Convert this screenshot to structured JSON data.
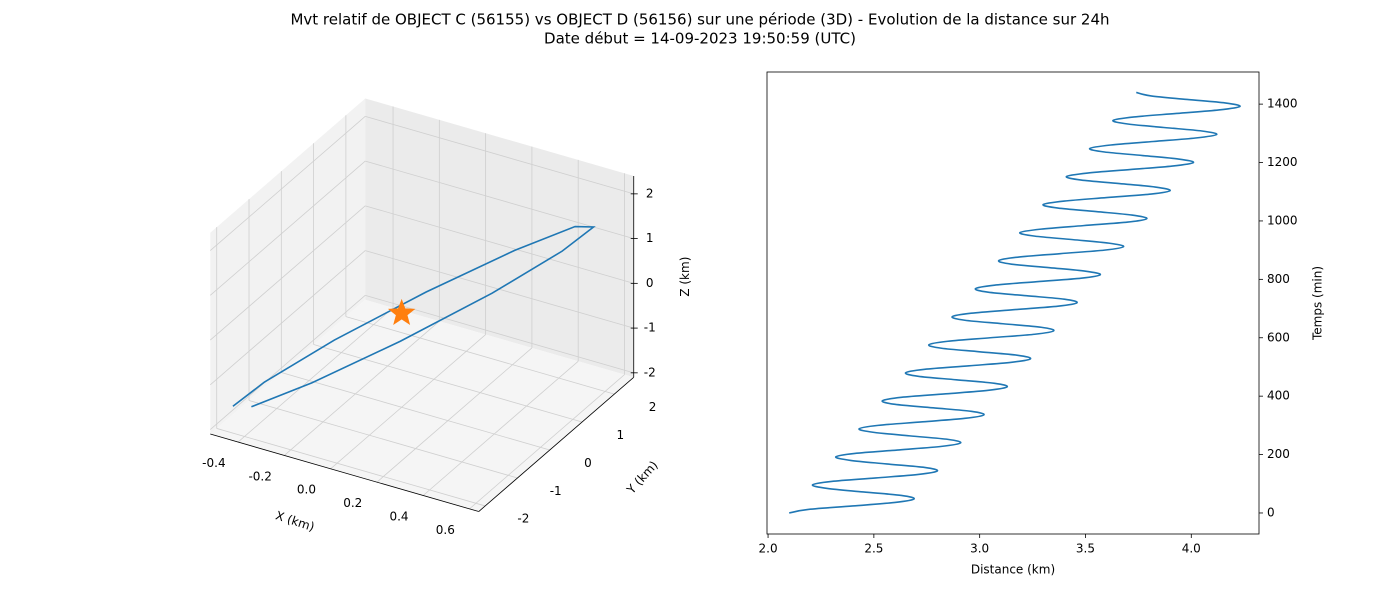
{
  "title": "Mvt relatif de OBJECT C (56155) vs OBJECT D (56156) sur une période (3D) - Evolution de la distance sur 24h",
  "subtitle": "Date début = 14-09-2023 19:50:59 (UTC)",
  "chart_data": [
    {
      "type": "line3d",
      "color": "#1f77b4",
      "x": [
        -0.45,
        -0.38,
        -0.2,
        0.05,
        0.3,
        0.48,
        0.55,
        0.48,
        0.3,
        0.05,
        -0.2,
        -0.38
      ],
      "y": [
        -2,
        -1.53,
        -0.65,
        0.4,
        1.35,
        1.93,
        2,
        1.53,
        0.65,
        -0.4,
        -1.35,
        -1.93
      ],
      "z": [
        -1.5,
        -1.15,
        -0.49,
        0.3,
        1.01,
        1.45,
        1.5,
        1.15,
        0.49,
        -0.3,
        -1.01,
        -1.45
      ],
      "marker": {
        "x": 0,
        "y": 0,
        "z": 0,
        "color": "#ff7f0e"
      },
      "xlabel": "X (km)",
      "ylabel": "Y (km)",
      "zlabel": "Z (km)",
      "xlim": [
        -0.52,
        0.64
      ],
      "ylim": [
        -2.2,
        2.6
      ],
      "zlim": [
        -2.1,
        2.4
      ],
      "xticks": [
        -0.4,
        -0.2,
        {
          "value": 0,
          "label": "0.0"
        },
        0.2,
        0.4,
        0.6
      ],
      "yticks": [
        -2,
        -1,
        0,
        1,
        2
      ],
      "zticks": [
        -2,
        -1,
        0,
        1,
        2
      ],
      "grid": true
    },
    {
      "type": "line",
      "color": "#1f77b4",
      "x": [
        2.1,
        2.19,
        2.4,
        2.6,
        2.69,
        2.63,
        2.45,
        2.28,
        2.21,
        2.3,
        2.51,
        2.71,
        2.8,
        2.74,
        2.56,
        2.39,
        2.32,
        2.41,
        2.62,
        2.82,
        2.91,
        2.85,
        2.67,
        2.5,
        2.43,
        2.52,
        2.73,
        2.93,
        3.02,
        2.96,
        2.78,
        2.6,
        2.54,
        2.63,
        2.84,
        3.04,
        3.13,
        3.07,
        2.89,
        2.71,
        2.65,
        2.74,
        2.95,
        3.15,
        3.24,
        3.18,
        3.0,
        2.82,
        2.76,
        2.85,
        3.05,
        3.26,
        3.35,
        3.29,
        3.11,
        2.93,
        2.87,
        2.96,
        3.16,
        3.37,
        3.46,
        3.4,
        3.22,
        3.04,
        2.98,
        3.07,
        3.27,
        3.48,
        3.57,
        3.5,
        3.33,
        3.15,
        3.09,
        3.18,
        3.38,
        3.59,
        3.68,
        3.61,
        3.44,
        3.26,
        3.19,
        3.29,
        3.49,
        3.7,
        3.79,
        3.72,
        3.55,
        3.37,
        3.3,
        3.4,
        3.6,
        3.81,
        3.9,
        3.83,
        3.66,
        3.48,
        3.41,
        3.51,
        3.71,
        3.91,
        4.01,
        3.94,
        3.77,
        3.59,
        3.52,
        3.62,
        3.82,
        4.02,
        4.12,
        4.05,
        3.87,
        3.7,
        3.63,
        3.73,
        3.93,
        4.13,
        4.23,
        4.16,
        3.98,
        3.81,
        3.74
      ],
      "values": [
        0,
        12,
        24,
        36,
        48,
        60,
        72,
        84,
        96,
        108,
        120,
        132,
        144,
        156,
        168,
        180,
        192,
        204,
        216,
        228,
        240,
        252,
        264,
        276,
        288,
        300,
        312,
        324,
        336,
        348,
        360,
        372,
        384,
        396,
        408,
        420,
        432,
        444,
        456,
        468,
        480,
        492,
        504,
        516,
        528,
        540,
        552,
        564,
        576,
        588,
        600,
        612,
        624,
        636,
        648,
        660,
        672,
        684,
        696,
        708,
        720,
        732,
        744,
        756,
        768,
        780,
        792,
        804,
        816,
        828,
        840,
        852,
        864,
        876,
        888,
        900,
        912,
        924,
        936,
        948,
        960,
        972,
        984,
        996,
        1008,
        1020,
        1032,
        1044,
        1056,
        1068,
        1080,
        1092,
        1104,
        1116,
        1128,
        1140,
        1152,
        1164,
        1176,
        1188,
        1200,
        1212,
        1224,
        1236,
        1248,
        1260,
        1272,
        1284,
        1296,
        1308,
        1320,
        1332,
        1344,
        1356,
        1368,
        1380,
        1392,
        1404,
        1416,
        1428,
        1440
      ],
      "xlabel": "Distance (km)",
      "ylabel": "Temps (min)",
      "xlim": [
        1.995,
        4.32
      ],
      "ylim": [
        -72,
        1510
      ],
      "xticks": [
        {
          "value": 2,
          "label": "2.0"
        },
        2.5,
        {
          "value": 3,
          "label": "3.0"
        },
        3.5,
        {
          "value": 4,
          "label": "4.0"
        }
      ],
      "yticks": [
        0,
        200,
        400,
        600,
        800,
        1000,
        1200,
        1400
      ],
      "yaxis_position": "right",
      "grid": false
    }
  ]
}
